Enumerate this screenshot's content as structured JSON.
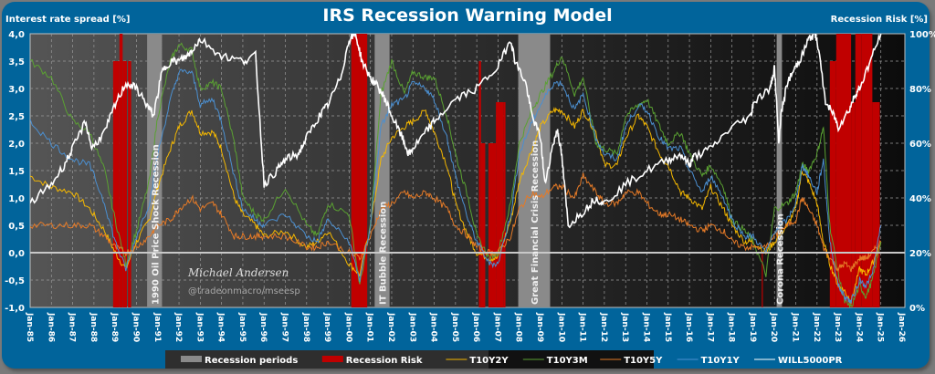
{
  "chart_data": {
    "type": "line",
    "title": "IRS Recession Warning Model",
    "ylabel_left": "Interest rate spread [%]",
    "ylabel_right": "Recession Risk [%]",
    "y_left_range": [
      -1.0,
      4.0
    ],
    "y_left_ticks": [
      "-1,0",
      "-0,5",
      "0,0",
      "0,5",
      "1,0",
      "1,5",
      "2,0",
      "2,5",
      "3,0",
      "3,5",
      "4,0"
    ],
    "y_right_range": [
      0,
      100
    ],
    "y_right_ticks": [
      "0%",
      "20%",
      "40%",
      "60%",
      "80%",
      "100%"
    ],
    "x_range": [
      1985,
      2026
    ],
    "x_ticks": [
      "Jan-85",
      "Jan-86",
      "Jan-87",
      "Jan-88",
      "Jan-89",
      "Jan-90",
      "Jan-91",
      "Jan-92",
      "Jan-93",
      "Jan-94",
      "Jan-95",
      "Jan-96",
      "Jan-97",
      "Jan-98",
      "Jan-99",
      "Jan-00",
      "Jan-01",
      "Jan-02",
      "Jan-03",
      "Jan-04",
      "Jan-05",
      "Jan-06",
      "Jan-07",
      "Jan-08",
      "Jan-09",
      "Jan-10",
      "Jan-11",
      "Jan-12",
      "Jan-13",
      "Jan-14",
      "Jan-15",
      "Jan-16",
      "Jan-17",
      "Jan-18",
      "Jan-19",
      "Jan-20",
      "Jan-21",
      "Jan-22",
      "Jan-23",
      "Jan-24",
      "Jan-25",
      "Jan-26"
    ],
    "grid": true,
    "legend_position": "bottom",
    "recession_periods": [
      {
        "label": "1990 Oil Price Shock  Recession",
        "start": 1990.5,
        "end": 1991.2
      },
      {
        "label": "IT Bubble Recession",
        "start": 2001.2,
        "end": 2001.9
      },
      {
        "label": "Great Financial Crisis Recession",
        "start": 2007.95,
        "end": 2009.45
      },
      {
        "label": "Corona Recession",
        "start": 2020.1,
        "end": 2020.35
      }
    ],
    "recession_risk": [
      {
        "start": 1988.9,
        "end": 1989.2,
        "value": 90
      },
      {
        "start": 1989.2,
        "end": 1989.35,
        "value": 100
      },
      {
        "start": 1989.35,
        "end": 1989.55,
        "value": 90
      },
      {
        "start": 1989.6,
        "end": 1989.75,
        "value": 90
      },
      {
        "start": 2000.1,
        "end": 2000.5,
        "value": 100
      },
      {
        "start": 2000.5,
        "end": 2000.85,
        "value": 100
      },
      {
        "start": 2006.1,
        "end": 2006.2,
        "value": 90
      },
      {
        "start": 2006.2,
        "end": 2006.4,
        "value": 60
      },
      {
        "start": 2006.55,
        "end": 2006.9,
        "value": 60
      },
      {
        "start": 2006.9,
        "end": 2007.25,
        "value": 75
      },
      {
        "start": 2007.25,
        "end": 2007.35,
        "value": 75
      },
      {
        "start": 2019.4,
        "end": 2019.45,
        "value": 20
      },
      {
        "start": 2022.6,
        "end": 2022.9,
        "value": 90
      },
      {
        "start": 2022.9,
        "end": 2023.6,
        "value": 100
      },
      {
        "start": 2023.6,
        "end": 2023.8,
        "value": 75
      },
      {
        "start": 2023.8,
        "end": 2024.1,
        "value": 100
      },
      {
        "start": 2024.1,
        "end": 2024.6,
        "value": 100
      },
      {
        "start": 2024.6,
        "end": 2024.95,
        "value": 75
      }
    ],
    "series": [
      {
        "name": "T10Y2Y",
        "color": "#f5b800",
        "axis": "left",
        "x": [
          1985,
          1986,
          1987,
          1987.8,
          1988.5,
          1989,
          1989.5,
          1990,
          1990.6,
          1991,
          1991.6,
          1992,
          1992.6,
          1993,
          1993.6,
          1994,
          1994.6,
          1995,
          1995.6,
          1996,
          1997,
          1998,
          1998.5,
          1999,
          2000,
          2000.5,
          2001,
          2001.5,
          2002,
          2002.6,
          2003,
          2003.6,
          2004,
          2004.6,
          2005,
          2005.6,
          2006,
          2006.6,
          2007,
          2007.6,
          2008,
          2008.6,
          2009,
          2009.6,
          2010,
          2010.6,
          2011,
          2011.6,
          2012,
          2012.6,
          2013,
          2013.6,
          2014,
          2014.6,
          2015,
          2015.6,
          2016,
          2016.6,
          2017,
          2017.6,
          2018,
          2018.6,
          2019,
          2019.6,
          2020,
          2020.6,
          2021,
          2021.3,
          2021.6,
          2022,
          2022.3,
          2022.6,
          2023,
          2023.3,
          2023.6,
          2024,
          2024.3,
          2024.6,
          2025
        ],
        "y": [
          1.4,
          1.2,
          1.1,
          0.8,
          0.4,
          0.0,
          -0.3,
          0.2,
          0.6,
          1.2,
          1.9,
          2.3,
          2.6,
          2.2,
          2.2,
          1.9,
          1.0,
          0.7,
          0.5,
          0.3,
          0.4,
          0.1,
          0.2,
          0.4,
          -0.2,
          -0.4,
          0.5,
          1.7,
          2.1,
          2.3,
          2.4,
          2.6,
          2.2,
          1.6,
          0.9,
          0.3,
          0.0,
          -0.1,
          -0.1,
          0.6,
          1.3,
          1.9,
          2.3,
          2.6,
          2.6,
          2.3,
          2.6,
          2.2,
          1.6,
          1.6,
          2.1,
          2.5,
          2.3,
          1.8,
          1.6,
          1.1,
          1.0,
          0.8,
          1.2,
          0.8,
          0.5,
          0.2,
          0.2,
          0.0,
          0.2,
          0.5,
          0.8,
          1.5,
          1.3,
          0.9,
          0.2,
          -0.2,
          -0.6,
          -0.7,
          -0.9,
          -0.3,
          -0.4,
          -0.2,
          0.2
        ]
      },
      {
        "name": "T10Y3M",
        "color": "#5aa132",
        "axis": "left",
        "x": [
          1985,
          1986,
          1987,
          1987.8,
          1988.5,
          1989,
          1989.5,
          1990,
          1990.6,
          1991,
          1991.6,
          1992,
          1992.6,
          1993,
          1993.6,
          1994,
          1994.6,
          1995,
          1995.6,
          1996,
          1997,
          1998,
          1998.5,
          1999,
          2000,
          2000.5,
          2001,
          2001.5,
          2002,
          2002.6,
          2003,
          2003.6,
          2004,
          2004.6,
          2005,
          2005.6,
          2006,
          2006.6,
          2007,
          2007.6,
          2008,
          2008.6,
          2009,
          2009.6,
          2010,
          2010.6,
          2011,
          2011.6,
          2012,
          2012.6,
          2013,
          2013.6,
          2014,
          2014.6,
          2015,
          2015.6,
          2016,
          2016.6,
          2017,
          2017.6,
          2018,
          2018.6,
          2019,
          2019.6,
          2020,
          2020.6,
          2021,
          2021.3,
          2021.6,
          2022,
          2022.3,
          2022.6,
          2023,
          2023.3,
          2023.6,
          2024,
          2024.3,
          2024.6,
          2025
        ],
        "y": [
          3.5,
          3.2,
          2.4,
          2.2,
          1.5,
          0.6,
          -0.2,
          0.4,
          1.3,
          2.5,
          3.5,
          3.8,
          3.7,
          3.0,
          3.1,
          3.0,
          2.0,
          1.0,
          0.7,
          0.6,
          1.2,
          0.5,
          0.3,
          0.9,
          0.7,
          -0.6,
          0.5,
          2.9,
          3.5,
          2.9,
          3.3,
          3.2,
          3.2,
          2.5,
          1.8,
          1.0,
          0.3,
          -0.1,
          0.0,
          0.9,
          2.0,
          2.6,
          2.9,
          3.3,
          3.6,
          2.9,
          3.2,
          2.0,
          1.9,
          1.8,
          2.5,
          2.7,
          2.8,
          2.3,
          2.0,
          2.2,
          1.8,
          1.4,
          1.6,
          1.2,
          0.6,
          0.4,
          0.2,
          -0.4,
          0.8,
          0.9,
          1.1,
          1.6,
          1.5,
          1.8,
          2.3,
          0.5,
          -0.4,
          -0.9,
          -1.0,
          -0.6,
          -0.8,
          -0.5,
          0.2
        ]
      },
      {
        "name": "T10Y5Y",
        "color": "#e57a27",
        "axis": "left",
        "x": [
          1985,
          1986,
          1987,
          1987.8,
          1988.5,
          1989,
          1989.5,
          1990,
          1990.6,
          1991,
          1991.6,
          1992,
          1992.6,
          1993,
          1993.6,
          1994,
          1994.6,
          1995,
          1995.6,
          1996,
          1997,
          1998,
          1998.5,
          1999,
          2000,
          2000.5,
          2001,
          2001.5,
          2002,
          2002.6,
          2003,
          2003.6,
          2004,
          2004.6,
          2005,
          2005.6,
          2006,
          2006.6,
          2007,
          2007.6,
          2008,
          2008.6,
          2009,
          2009.6,
          2010,
          2010.6,
          2011,
          2011.6,
          2012,
          2012.6,
          2013,
          2013.6,
          2014,
          2014.6,
          2015,
          2015.6,
          2016,
          2016.6,
          2017,
          2017.6,
          2018,
          2018.6,
          2019,
          2019.6,
          2020,
          2020.6,
          2021,
          2021.3,
          2021.6,
          2022,
          2022.3,
          2022.6,
          2023,
          2023.3,
          2023.6,
          2024,
          2024.3,
          2024.6,
          2025
        ],
        "y": [
          0.5,
          0.5,
          0.5,
          0.5,
          0.3,
          0.1,
          0.0,
          0.1,
          0.3,
          0.5,
          0.6,
          0.8,
          1.0,
          0.8,
          0.9,
          0.7,
          0.3,
          0.3,
          0.3,
          0.3,
          0.3,
          0.1,
          0.1,
          0.2,
          0.0,
          -0.1,
          0.3,
          0.8,
          0.9,
          1.1,
          1.0,
          1.1,
          1.0,
          0.8,
          0.5,
          0.3,
          0.1,
          0.0,
          0.0,
          0.3,
          0.8,
          1.1,
          1.0,
          1.2,
          1.2,
          1.0,
          1.4,
          1.1,
          0.9,
          0.9,
          1.1,
          1.1,
          0.9,
          0.7,
          0.7,
          0.6,
          0.5,
          0.4,
          0.5,
          0.4,
          0.2,
          0.1,
          0.1,
          0.1,
          0.3,
          0.5,
          0.6,
          1.0,
          0.8,
          0.5,
          0.1,
          -0.1,
          -0.3,
          -0.2,
          -0.3,
          -0.1,
          -0.1,
          0.0,
          0.2
        ]
      },
      {
        "name": "T10Y1Y",
        "color": "#4b8fd0",
        "axis": "left",
        "x": [
          1985,
          1986,
          1987,
          1987.8,
          1988.5,
          1989,
          1989.5,
          1990,
          1990.6,
          1991,
          1991.6,
          1992,
          1992.6,
          1993,
          1993.6,
          1994,
          1994.6,
          1995,
          1995.6,
          1996,
          1997,
          1998,
          1998.5,
          1999,
          2000,
          2000.5,
          2001,
          2001.5,
          2002,
          2002.6,
          2003,
          2003.6,
          2004,
          2004.6,
          2005,
          2005.6,
          2006,
          2006.6,
          2007,
          2007.6,
          2008,
          2008.6,
          2009,
          2009.6,
          2010,
          2010.6,
          2011,
          2011.6,
          2012,
          2012.6,
          2013,
          2013.6,
          2014,
          2014.6,
          2015,
          2015.6,
          2016,
          2016.6,
          2017,
          2017.6,
          2018,
          2018.6,
          2019,
          2019.6,
          2020,
          2020.6,
          2021,
          2021.3,
          2021.6,
          2022,
          2022.3,
          2022.6,
          2023,
          2023.3,
          2023.6,
          2024,
          2024.3,
          2024.6,
          2025
        ],
        "y": [
          2.4,
          2.0,
          1.7,
          1.6,
          0.9,
          0.2,
          -0.3,
          0.3,
          0.9,
          1.8,
          2.8,
          3.3,
          3.3,
          2.7,
          2.8,
          2.4,
          1.4,
          0.8,
          0.6,
          0.5,
          0.7,
          0.3,
          0.2,
          0.6,
          0.2,
          -0.5,
          0.5,
          2.3,
          2.7,
          2.8,
          3.1,
          3.0,
          2.8,
          2.1,
          1.4,
          0.6,
          0.2,
          -0.2,
          -0.2,
          0.7,
          1.8,
          2.4,
          2.7,
          3.1,
          3.1,
          2.6,
          2.9,
          2.1,
          1.8,
          1.7,
          2.3,
          2.7,
          2.6,
          2.1,
          1.9,
          1.9,
          1.5,
          1.1,
          1.4,
          1.0,
          0.6,
          0.3,
          0.3,
          0.0,
          0.4,
          0.6,
          0.9,
          1.6,
          1.4,
          1.1,
          1.7,
          0.2,
          -0.6,
          -0.8,
          -0.9,
          -0.5,
          -0.6,
          -0.4,
          0.5
        ]
      },
      {
        "name": "WILL5000PR",
        "color": "#ffffff",
        "axis": "right",
        "x": [
          1985,
          1986,
          1986.6,
          1987,
          1987.6,
          1987.9,
          1988.5,
          1989,
          1989.5,
          1990,
          1990.5,
          1990.8,
          1991.2,
          1991.6,
          1992,
          1992.4,
          1992.6,
          1993,
          1994,
          1995,
          1995.6,
          1996,
          1996.6,
          1997,
          1997.6,
          1998,
          1998.6,
          1999,
          1999.6,
          2000,
          2000.3,
          2000.6,
          2001,
          2001.4,
          2001.7,
          2002,
          2002.5,
          2002.8,
          2003,
          2003.6,
          2004,
          2005,
          2006,
          2007,
          2007.6,
          2007.8,
          2008.3,
          2008.6,
          2009,
          2009.2,
          2009.6,
          2009.8,
          2010,
          2010.3,
          2011,
          2011.6,
          2012,
          2013,
          2014,
          2015,
          2015.6,
          2016,
          2016.2,
          2017,
          2018,
          2018.9,
          2019,
          2019.8,
          2020,
          2020.2,
          2020.3,
          2020.6,
          2021,
          2021.3,
          2021.6,
          2021.9,
          2022,
          2022.4,
          2022.8,
          2023,
          2023.5,
          2023.8,
          2024,
          2024.5,
          2025
        ],
        "y": [
          38,
          45,
          52,
          58,
          68,
          58,
          64,
          74,
          82,
          80,
          74,
          70,
          86,
          90,
          90,
          92,
          94,
          98,
          92,
          90,
          92,
          45,
          50,
          54,
          56,
          62,
          70,
          74,
          84,
          98,
          100,
          90,
          84,
          80,
          76,
          70,
          62,
          56,
          58,
          64,
          68,
          76,
          80,
          88,
          98,
          90,
          82,
          70,
          62,
          45,
          60,
          65,
          55,
          30,
          35,
          40,
          38,
          45,
          50,
          54,
          56,
          52,
          55,
          58,
          66,
          70,
          75,
          80,
          88,
          60,
          70,
          82,
          88,
          92,
          98,
          100,
          98,
          75,
          70,
          66,
          72,
          78,
          80,
          90,
          100
        ]
      }
    ]
  },
  "legend": [
    {
      "label": "Recession periods",
      "type": "box",
      "color": "#8a8a8a"
    },
    {
      "label": "Recession Risk",
      "type": "box",
      "color": "#c00000"
    },
    {
      "label": "T10Y2Y",
      "type": "line",
      "color": "#f5b800"
    },
    {
      "label": "T10Y3M",
      "type": "line",
      "color": "#5aa132"
    },
    {
      "label": "T10Y5Y",
      "type": "line",
      "color": "#e57a27"
    },
    {
      "label": "T10Y1Y",
      "type": "line",
      "color": "#4b8fd0"
    },
    {
      "label": "WILL5000PR",
      "type": "line",
      "color": "#ffffff"
    }
  ],
  "watermark": {
    "author": "Michael Andersen",
    "handle": "@tradeonmacro/mseesp"
  },
  "colors": {
    "background": "#01649b",
    "plot_dark": "#111111",
    "plot_mid": "#4a4a4a"
  }
}
